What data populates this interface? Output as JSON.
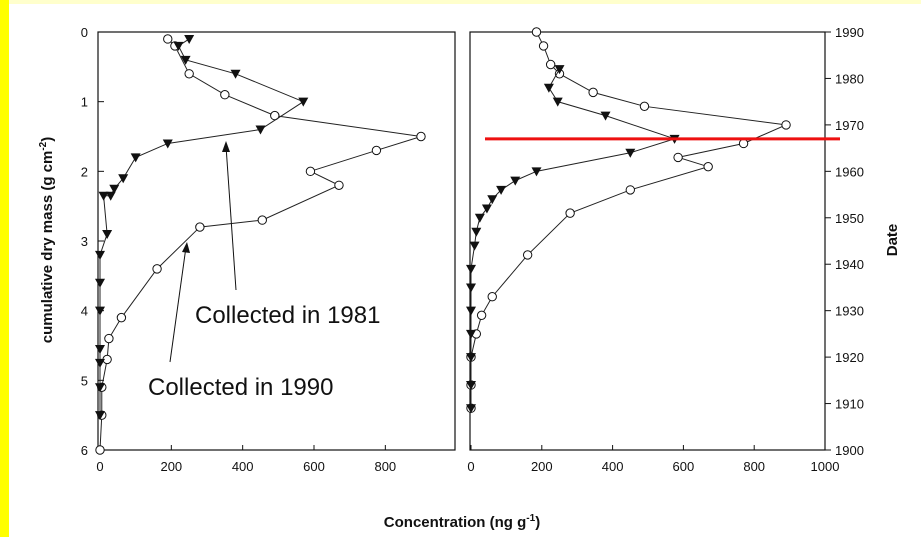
{
  "chart_data": [
    {
      "type": "line",
      "panel": "left",
      "xlabel": "Concentration (ng g-1)",
      "ylabel": "cumulative dry mass (g cm-2)",
      "xlim": [
        0,
        950
      ],
      "ylim": [
        0,
        6
      ],
      "y_inverted": true,
      "xticks": [
        "0",
        "200",
        "400",
        "600",
        "800"
      ],
      "yticks": [
        "0",
        "1",
        "2",
        "3",
        "4",
        "5",
        "6"
      ],
      "series": [
        {
          "name": "Collected in 1990",
          "marker": "open-circle",
          "points": [
            [
              190,
              0.1
            ],
            [
              210,
              0.2
            ],
            [
              250,
              0.6
            ],
            [
              350,
              0.9
            ],
            [
              490,
              1.2
            ],
            [
              900,
              1.5
            ],
            [
              775,
              1.7
            ],
            [
              590,
              2.0
            ],
            [
              670,
              2.2
            ],
            [
              455,
              2.7
            ],
            [
              280,
              2.8
            ],
            [
              160,
              3.4
            ],
            [
              60,
              4.1
            ],
            [
              25,
              4.4
            ],
            [
              20,
              4.7
            ],
            [
              5,
              5.1
            ],
            [
              5,
              5.5
            ],
            [
              0,
              6.0
            ]
          ]
        },
        {
          "name": "Collected in 1981",
          "marker": "filled-triangle-down",
          "points": [
            [
              250,
              0.1
            ],
            [
              220,
              0.2
            ],
            [
              240,
              0.4
            ],
            [
              380,
              0.6
            ],
            [
              570,
              1.0
            ],
            [
              450,
              1.4
            ],
            [
              190,
              1.6
            ],
            [
              100,
              1.8
            ],
            [
              65,
              2.1
            ],
            [
              40,
              2.25
            ],
            [
              30,
              2.35
            ],
            [
              10,
              2.35
            ],
            [
              20,
              2.9
            ],
            [
              0,
              3.2
            ],
            [
              0,
              3.6
            ],
            [
              0,
              4.0
            ],
            [
              0,
              4.55
            ],
            [
              0,
              4.75
            ],
            [
              0,
              5.1
            ],
            [
              0,
              5.5
            ]
          ]
        }
      ],
      "annotations": [
        {
          "text": "Collected in 1981",
          "points_to": [
            330,
            1.55
          ]
        },
        {
          "text": "Collected in 1990",
          "points_to": [
            220,
            3.05
          ]
        }
      ]
    },
    {
      "type": "line",
      "panel": "right",
      "xlabel": "Concentration (ng g-1)",
      "ylabel": "Date",
      "xlim": [
        0,
        1000
      ],
      "ylim": [
        1900,
        1990
      ],
      "y_inverted": true,
      "xticks": [
        "0",
        "200",
        "400",
        "600",
        "800",
        "1000"
      ],
      "yticks": [
        "1990",
        "1980",
        "1970",
        "1960",
        "1950",
        "1940",
        "1930",
        "1920",
        "1910",
        "1900"
      ],
      "reference_line": {
        "date": 1967,
        "color": "#ee1111"
      },
      "series": [
        {
          "name": "Collected in 1990",
          "marker": "open-circle",
          "points": [
            [
              185,
              1990
            ],
            [
              205,
              1987
            ],
            [
              225,
              1983
            ],
            [
              250,
              1981
            ],
            [
              345,
              1977
            ],
            [
              490,
              1974
            ],
            [
              890,
              1970
            ],
            [
              770,
              1966
            ],
            [
              585,
              1963
            ],
            [
              670,
              1961
            ],
            [
              450,
              1956
            ],
            [
              280,
              1951
            ],
            [
              160,
              1942
            ],
            [
              60,
              1933
            ],
            [
              30,
              1929
            ],
            [
              15,
              1925
            ],
            [
              0,
              1920
            ],
            [
              0,
              1914
            ],
            [
              0,
              1909
            ]
          ]
        },
        {
          "name": "Collected in 1981",
          "marker": "filled-triangle-down",
          "points": [
            [
              250,
              1982
            ],
            [
              220,
              1978
            ],
            [
              245,
              1975
            ],
            [
              380,
              1972
            ],
            [
              575,
              1967
            ],
            [
              450,
              1964
            ],
            [
              185,
              1960
            ],
            [
              125,
              1958
            ],
            [
              85,
              1956
            ],
            [
              60,
              1954
            ],
            [
              45,
              1952
            ],
            [
              25,
              1950
            ],
            [
              15,
              1947
            ],
            [
              10,
              1944
            ],
            [
              0,
              1939
            ],
            [
              0,
              1935
            ],
            [
              0,
              1930
            ],
            [
              0,
              1925
            ],
            [
              0,
              1920
            ],
            [
              0,
              1914
            ],
            [
              0,
              1909
            ]
          ]
        }
      ]
    }
  ],
  "labels": {
    "y_left_main": "cumulative dry mass (g cm",
    "y_left_sup": "-2",
    "y_left_close": ")",
    "x_main": "Concentration (ng g",
    "x_sup": "-1",
    "x_close": ")",
    "y_right": "Date",
    "annotation_1981": "Collected in 1981",
    "annotation_1990": "Collected in 1990"
  },
  "colors": {
    "background": "#ffffcc",
    "side_strip": "#ffff00",
    "reference_line": "#ee1111",
    "ink": "#111111"
  }
}
